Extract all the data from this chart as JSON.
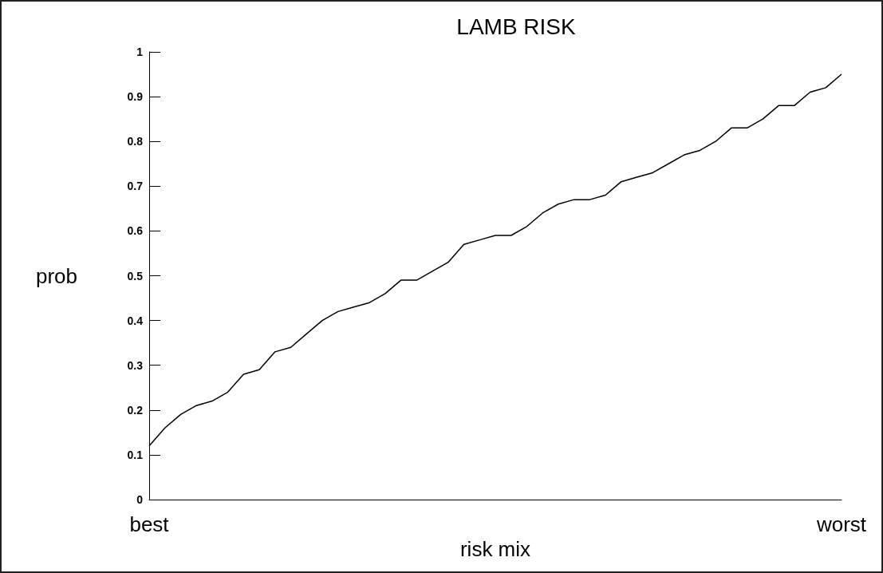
{
  "chart_data": {
    "type": "line",
    "title": "LAMB RISK",
    "xlabel": "risk mix",
    "ylabel": "prob",
    "categories": [
      "best",
      null,
      null,
      null,
      null,
      null,
      null,
      null,
      null,
      null,
      null,
      null,
      null,
      null,
      null,
      null,
      null,
      null,
      null,
      null,
      null,
      null,
      null,
      null,
      null,
      null,
      null,
      null,
      null,
      null,
      null,
      null,
      null,
      null,
      null,
      null,
      null,
      null,
      null,
      null,
      null,
      null,
      null,
      null,
      "worst"
    ],
    "series": [
      {
        "color": "#000000",
        "values": [
          0.12,
          0.16,
          0.19,
          0.21,
          0.22,
          0.24,
          0.28,
          0.29,
          0.33,
          0.34,
          0.37,
          0.4,
          0.42,
          0.43,
          0.44,
          0.46,
          0.49,
          0.49,
          0.51,
          0.53,
          0.57,
          0.58,
          0.59,
          0.59,
          0.61,
          0.64,
          0.66,
          0.67,
          0.67,
          0.68,
          0.71,
          0.72,
          0.73,
          0.75,
          0.77,
          0.78,
          0.8,
          0.83,
          0.83,
          0.85,
          0.88,
          0.88,
          0.91,
          0.92,
          0.95
        ]
      }
    ],
    "ylim": [
      0,
      1
    ],
    "yticks": [
      0,
      0.1,
      0.2,
      0.3,
      0.4,
      0.5,
      0.6,
      0.7,
      0.8,
      0.9,
      1
    ],
    "grid": false,
    "marker": "none",
    "line_style": "solid"
  }
}
